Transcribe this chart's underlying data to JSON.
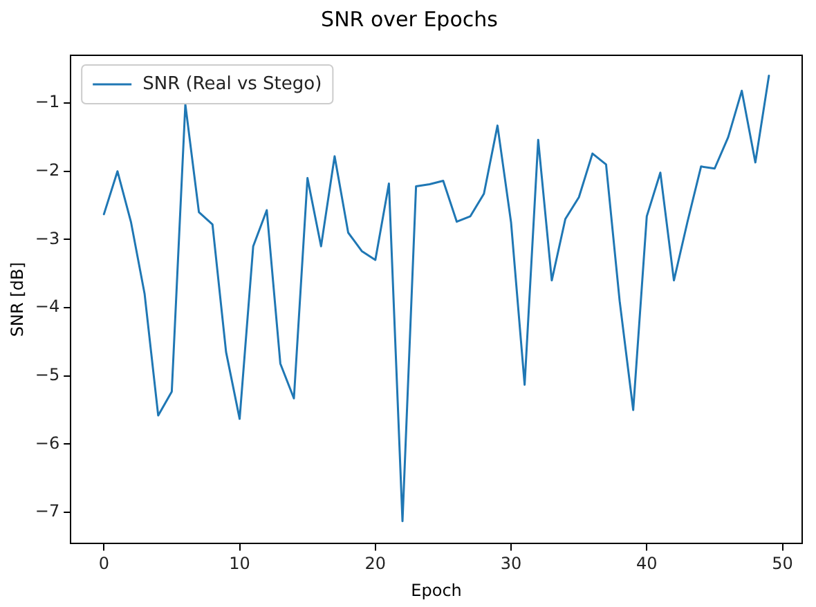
{
  "chart_data": {
    "type": "line",
    "title": "SNR over Epochs",
    "xlabel": "Epoch",
    "ylabel": "SNR [dB]",
    "x": [
      0,
      1,
      2,
      3,
      4,
      5,
      6,
      7,
      8,
      9,
      10,
      11,
      12,
      13,
      14,
      15,
      16,
      17,
      18,
      19,
      20,
      21,
      22,
      23,
      24,
      25,
      26,
      27,
      28,
      29,
      30,
      31,
      32,
      33,
      34,
      35,
      36,
      37,
      38,
      39,
      40,
      41,
      42,
      43,
      44,
      45,
      46,
      47,
      48,
      49
    ],
    "series": [
      {
        "name": "SNR (Real vs Stego)",
        "color": "#1f77b4",
        "values": [
          -2.63,
          -2.0,
          -2.75,
          -3.8,
          -5.58,
          -5.23,
          -1.02,
          -2.6,
          -2.78,
          -4.65,
          -5.63,
          -3.1,
          -2.57,
          -4.82,
          -5.33,
          -2.1,
          -3.1,
          -1.78,
          -2.9,
          -3.17,
          -3.3,
          -2.18,
          -7.13,
          -2.22,
          -2.19,
          -2.14,
          -2.74,
          -2.66,
          -2.33,
          -1.33,
          -2.75,
          -5.13,
          -1.54,
          -3.6,
          -2.7,
          -2.38,
          -1.74,
          -1.9,
          -3.9,
          -5.5,
          -2.66,
          -2.02,
          -3.6,
          -2.74,
          -1.93,
          -1.96,
          -1.5,
          -0.82,
          -1.87,
          -0.6
        ]
      }
    ],
    "xlim": [
      -2.45,
      51.45
    ],
    "ylim": [
      -7.46,
      -0.3
    ],
    "xticks": [
      0,
      10,
      20,
      30,
      40,
      50
    ],
    "yticks": [
      {
        "value": -7,
        "label": "−7"
      },
      {
        "value": -6,
        "label": "−6"
      },
      {
        "value": -5,
        "label": "−5"
      },
      {
        "value": -4,
        "label": "−4"
      },
      {
        "value": -3,
        "label": "−3"
      },
      {
        "value": -2,
        "label": "−2"
      },
      {
        "value": -1,
        "label": "−1"
      }
    ],
    "grid": false,
    "legend": "top left",
    "marker": "none",
    "line_style": "solid"
  }
}
